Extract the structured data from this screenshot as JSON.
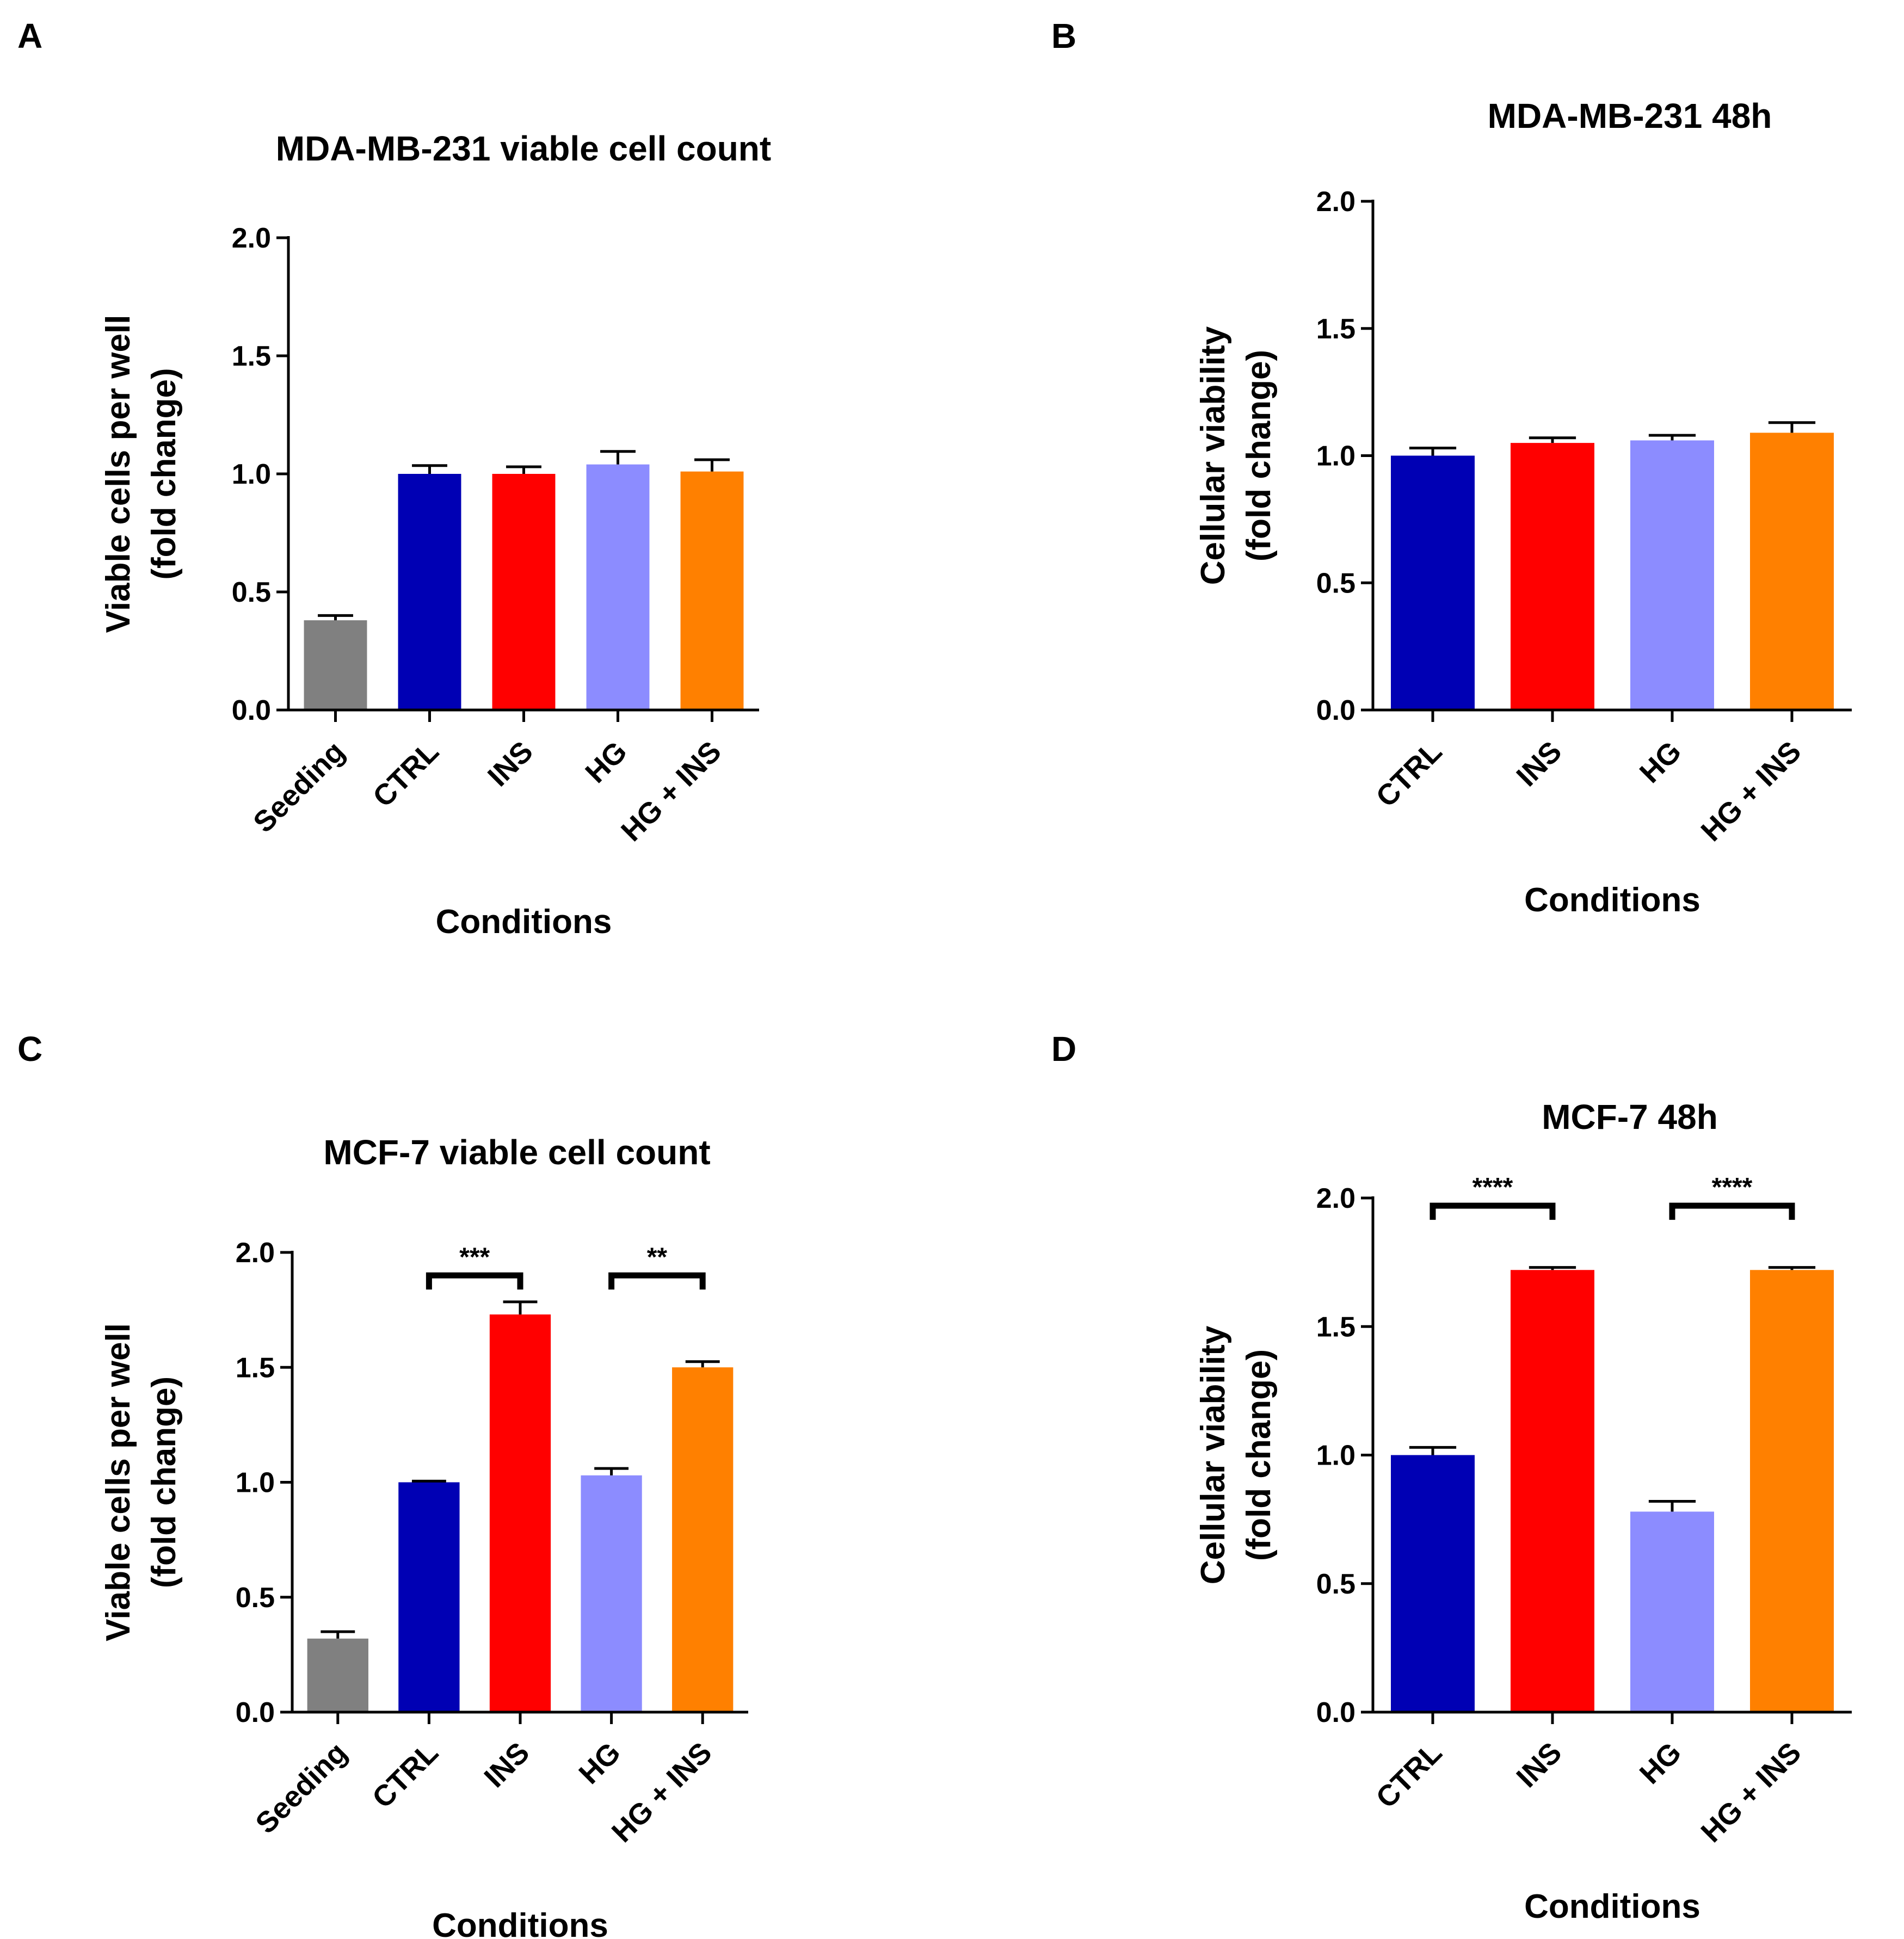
{
  "panels": [
    {
      "letter": "A"
    },
    {
      "letter": "B"
    },
    {
      "letter": "C"
    },
    {
      "letter": "D"
    }
  ],
  "colors": {
    "Seeding": "#808080",
    "CTRL": "#0000b4",
    "INS": "#ff0000",
    "HG": "#8c8cff",
    "HG + INS": "#ff8000",
    "axis": "#000000"
  },
  "chart_data": [
    {
      "id": "A",
      "type": "bar",
      "title": "MDA-MB-231 viable cell count",
      "xlabel": "Conditions",
      "ylabel": [
        "Viable cells per well",
        "(fold change)"
      ],
      "categories": [
        "Seeding",
        "CTRL",
        "INS",
        "HG",
        "HG + INS"
      ],
      "values": [
        0.38,
        1.0,
        1.0,
        1.04,
        1.01
      ],
      "errors": [
        0.02,
        0.035,
        0.03,
        0.055,
        0.05
      ],
      "ylim": [
        0,
        2.0
      ],
      "yticks": [
        "0.0",
        "0.5",
        "1.0",
        "1.5",
        "2.0"
      ],
      "significance": []
    },
    {
      "id": "B",
      "type": "bar",
      "title": "MDA-MB-231 48h",
      "xlabel": "Conditions",
      "ylabel": [
        "Cellular viability",
        "(fold change)"
      ],
      "categories": [
        "CTRL",
        "INS",
        "HG",
        "HG + INS"
      ],
      "values": [
        1.0,
        1.05,
        1.06,
        1.09
      ],
      "errors": [
        0.03,
        0.02,
        0.02,
        0.04
      ],
      "ylim": [
        0,
        2.0
      ],
      "yticks": [
        "0.0",
        "0.5",
        "1.0",
        "1.5",
        "2.0"
      ],
      "significance": []
    },
    {
      "id": "C",
      "type": "bar",
      "title": "MCF-7 viable cell count",
      "xlabel": "Conditions",
      "ylabel": [
        "Viable cells per well",
        "(fold change)"
      ],
      "categories": [
        "Seeding",
        "CTRL",
        "INS",
        "HG",
        "HG + INS"
      ],
      "values": [
        0.32,
        1.0,
        1.73,
        1.03,
        1.5
      ],
      "errors": [
        0.03,
        0.005,
        0.055,
        0.03,
        0.025
      ],
      "ylim": [
        0,
        2.0
      ],
      "yticks": [
        "0.0",
        "0.5",
        "1.0",
        "1.5",
        "2.0"
      ],
      "significance": [
        {
          "from": 1,
          "to": 2,
          "label": "***",
          "y": 1.9
        },
        {
          "from": 3,
          "to": 4,
          "label": "**",
          "y": 1.9
        }
      ]
    },
    {
      "id": "D",
      "type": "bar",
      "title": "MCF-7 48h",
      "xlabel": "Conditions",
      "ylabel": [
        "Cellular viability",
        "(fold change)"
      ],
      "categories": [
        "CTRL",
        "INS",
        "HG",
        "HG + INS"
      ],
      "values": [
        1.0,
        1.72,
        0.78,
        1.72
      ],
      "errors": [
        0.03,
        0.01,
        0.04,
        0.01
      ],
      "ylim": [
        0,
        2.0
      ],
      "yticks": [
        "0.0",
        "0.5",
        "1.0",
        "1.5",
        "2.0"
      ],
      "significance": [
        {
          "from": 0,
          "to": 1,
          "label": "****",
          "y": 1.97
        },
        {
          "from": 2,
          "to": 3,
          "label": "****",
          "y": 1.97
        }
      ]
    }
  ]
}
